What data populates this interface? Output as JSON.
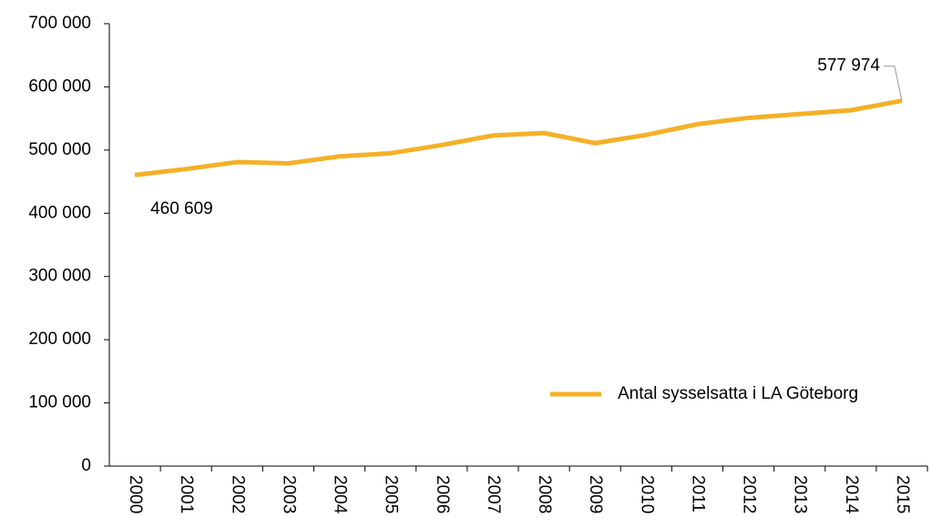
{
  "chart_data": {
    "type": "line",
    "categories": [
      "2000",
      "2001",
      "2002",
      "2003",
      "2004",
      "2005",
      "2006",
      "2007",
      "2008",
      "2009",
      "2010",
      "2011",
      "2012",
      "2013",
      "2014",
      "2015"
    ],
    "series": [
      {
        "name": "Antal sysselsatta i LA Göteborg",
        "color": "#f5b027",
        "values": [
          460609,
          470000,
          481000,
          479000,
          490000,
          495000,
          508000,
          523000,
          527000,
          511000,
          524000,
          541000,
          551000,
          557000,
          563000,
          577974
        ],
        "value_labels": [
          "460 609",
          null,
          null,
          null,
          null,
          null,
          null,
          null,
          null,
          null,
          null,
          null,
          null,
          null,
          null,
          "577 974"
        ]
      }
    ],
    "ylim": [
      0,
      700000
    ],
    "yticks": [
      0,
      {
        "value": 100000,
        "label": "100 000"
      },
      {
        "value": 200000,
        "label": "200 000"
      },
      {
        "value": 300000,
        "label": "300 000"
      },
      {
        "value": 400000,
        "label": "400 000"
      },
      {
        "value": 500000,
        "label": "500 000"
      },
      {
        "value": 600000,
        "label": "600 000"
      },
      {
        "value": 700000,
        "label": "700 000"
      }
    ],
    "legend": "lower right"
  }
}
